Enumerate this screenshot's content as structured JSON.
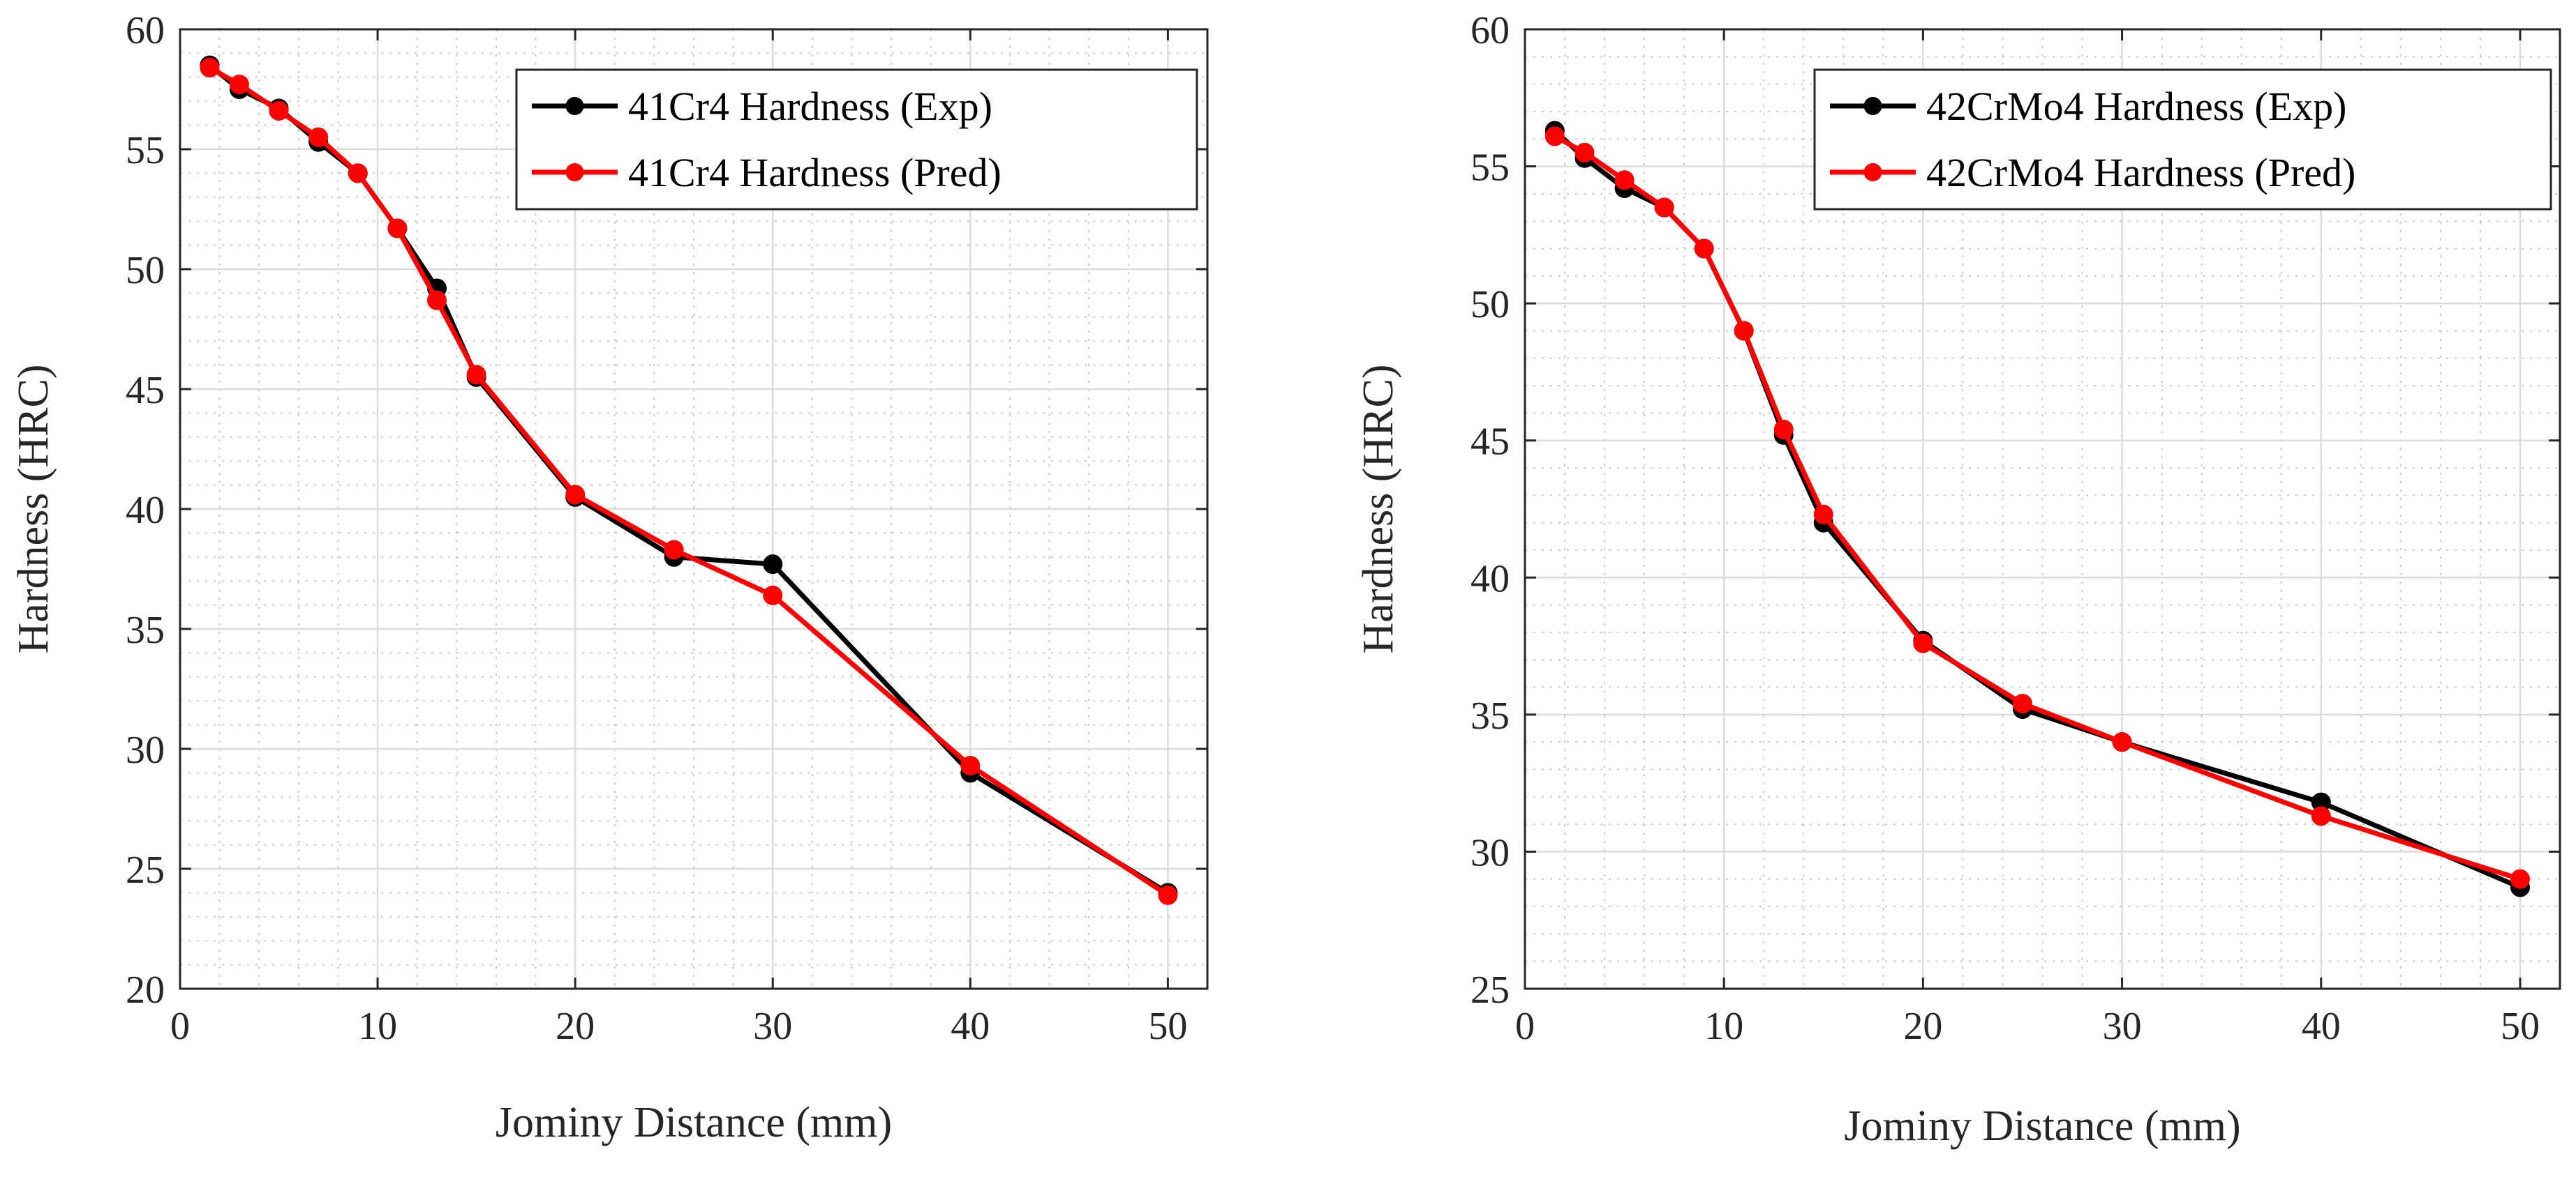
{
  "chart_data": [
    {
      "type": "line",
      "title": "",
      "xlabel": "Jominy Distance (mm)",
      "ylabel": "Hardness (HRC)",
      "xlim": [
        0,
        52
      ],
      "ylim": [
        20,
        60
      ],
      "xticks": [
        0,
        10,
        20,
        30,
        40,
        50
      ],
      "yticks": [
        20,
        25,
        30,
        35,
        40,
        45,
        50,
        55,
        60
      ],
      "grid": true,
      "legend_position": "top-right",
      "series": [
        {
          "name": "41Cr4 Hardness (Exp)",
          "color": "#000000",
          "x": [
            1.5,
            3,
            5,
            7,
            9,
            11,
            13,
            15,
            20,
            25,
            30,
            40,
            50
          ],
          "y": [
            58.5,
            57.5,
            56.7,
            55.3,
            54.0,
            51.7,
            49.2,
            45.5,
            40.5,
            38.0,
            37.7,
            29.0,
            24.0
          ]
        },
        {
          "name": "41Cr4 Hardness (Pred)",
          "color": "#ff0000",
          "x": [
            1.5,
            3,
            5,
            7,
            9,
            11,
            13,
            15,
            20,
            25,
            30,
            40,
            50
          ],
          "y": [
            58.4,
            57.7,
            56.6,
            55.5,
            54.0,
            51.7,
            48.7,
            45.6,
            40.6,
            38.3,
            36.4,
            29.3,
            23.9
          ]
        }
      ]
    },
    {
      "type": "line",
      "title": "",
      "xlabel": "Jominy Distance (mm)",
      "ylabel": "Hardness (HRC)",
      "xlim": [
        0,
        52
      ],
      "ylim": [
        25,
        60
      ],
      "xticks": [
        0,
        10,
        20,
        30,
        40,
        50
      ],
      "yticks": [
        25,
        30,
        35,
        40,
        45,
        50,
        55,
        60
      ],
      "grid": true,
      "legend_position": "top-right",
      "series": [
        {
          "name": "42CrMo4 Hardness (Exp)",
          "color": "#000000",
          "x": [
            1.5,
            3,
            5,
            7,
            9,
            11,
            13,
            15,
            20,
            25,
            30,
            40,
            50
          ],
          "y": [
            56.3,
            55.3,
            54.2,
            53.5,
            52.0,
            49.0,
            45.2,
            42.0,
            37.7,
            35.2,
            34.0,
            31.8,
            28.7
          ]
        },
        {
          "name": "42CrMo4 Hardness (Pred)",
          "color": "#ff0000",
          "x": [
            1.5,
            3,
            5,
            7,
            9,
            11,
            13,
            15,
            20,
            25,
            30,
            40,
            50
          ],
          "y": [
            56.1,
            55.5,
            54.5,
            53.5,
            52.0,
            49.0,
            45.4,
            42.3,
            37.6,
            35.4,
            34.0,
            31.3,
            29.0
          ]
        }
      ]
    }
  ]
}
